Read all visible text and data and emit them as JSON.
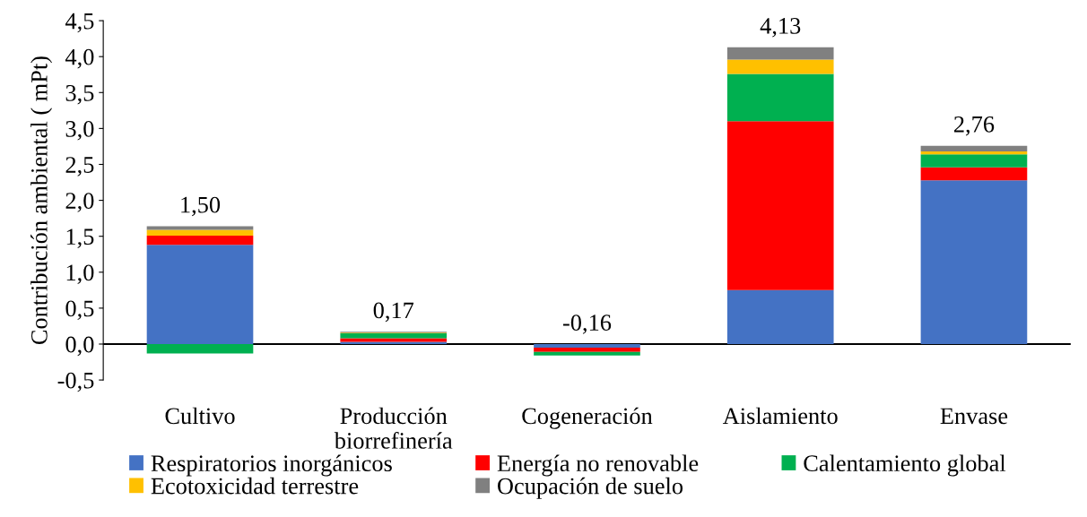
{
  "chart_data": {
    "type": "bar",
    "stacked": true,
    "ylabel": "Contribución ambiental ( mPt)",
    "categories": [
      "Cultivo",
      "Producción\nbiorrefinería",
      "Cogeneración",
      "Aislamiento",
      "Envase"
    ],
    "series": [
      {
        "name": "Respiratorios inorgánicos",
        "color": "#4472c4",
        "values": [
          1.38,
          0.03,
          -0.05,
          0.75,
          2.28
        ]
      },
      {
        "name": "Energía no renovable",
        "color": "#ff0000",
        "values": [
          0.13,
          0.05,
          -0.06,
          2.35,
          0.18
        ]
      },
      {
        "name": "Calentamiento global",
        "color": "#00b050",
        "values": [
          -0.13,
          0.07,
          -0.05,
          0.66,
          0.18
        ]
      },
      {
        "name": "Ecotoxicidad terrestre",
        "color": "#ffc000",
        "values": [
          0.08,
          0.01,
          null,
          0.2,
          0.04
        ]
      },
      {
        "name": "Ocupación de suelo",
        "color": "#808080",
        "values": [
          0.05,
          0.01,
          null,
          0.17,
          0.08
        ]
      }
    ],
    "totals": [
      "1,50",
      "0,17",
      "-0,16",
      "4,13",
      "2,76"
    ],
    "ylim": [
      -0.5,
      4.5
    ],
    "yticks": [
      {
        "value": -0.5,
        "label": "-0,5"
      },
      {
        "value": 0,
        "label": "0,0"
      },
      {
        "value": 0.5,
        "label": "0,5"
      },
      {
        "value": 1,
        "label": "1,0"
      },
      {
        "value": 1.5,
        "label": "1,5"
      },
      {
        "value": 2,
        "label": "2,0"
      },
      {
        "value": 2.5,
        "label": "2,5"
      },
      {
        "value": 3,
        "label": "3,0"
      },
      {
        "value": 3.5,
        "label": "3,5"
      },
      {
        "value": 4,
        "label": "4,0"
      },
      {
        "value": 4.5,
        "label": "4,5"
      }
    ],
    "legend": "bottom"
  }
}
